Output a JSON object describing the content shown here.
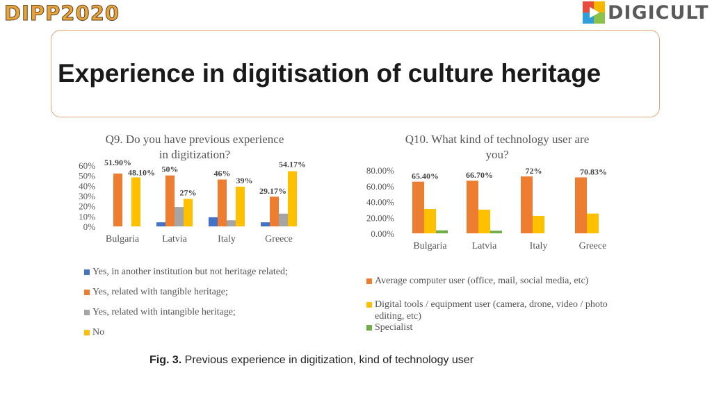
{
  "header": {
    "left_logo": "DIPP2020",
    "right_logo": "DIGICULT",
    "title": "Experience in digitisation of culture heritage"
  },
  "colors": {
    "blue": "#4472c4",
    "orange": "#ed7d31",
    "gray": "#a5a5a5",
    "yellow": "#ffc000",
    "green": "#70ad47"
  },
  "chart_data": [
    {
      "type": "bar",
      "title": "Q9. Do you have previous experience in digitization?",
      "title_lines": [
        "Q9. Do you have previous experience",
        "in digitization?"
      ],
      "categories": [
        "Bulgaria",
        "Latvia",
        "Italy",
        "Greece"
      ],
      "series": [
        {
          "name": "Yes, in another institution but not heritage related;",
          "values": [
            0,
            4,
            9,
            4
          ]
        },
        {
          "name": "Yes, related with tangible heritage;",
          "values": [
            51.9,
            50,
            46,
            29.17
          ]
        },
        {
          "name": "Yes, related with intangible heritage;",
          "values": [
            0,
            19,
            6,
            12.5
          ]
        },
        {
          "name": "No",
          "values": [
            48.1,
            27,
            39,
            54.17
          ]
        }
      ],
      "data_labels": [
        {
          "category": "Bulgaria",
          "series": 1,
          "text": "51.90%"
        },
        {
          "category": "Bulgaria",
          "series": 3,
          "text": "48.10%"
        },
        {
          "category": "Latvia",
          "series": 1,
          "text": "50%"
        },
        {
          "category": "Latvia",
          "series": 3,
          "text": "27%"
        },
        {
          "category": "Italy",
          "series": 1,
          "text": "46%"
        },
        {
          "category": "Italy",
          "series": 3,
          "text": "39%"
        },
        {
          "category": "Greece",
          "series": 1,
          "text": "29.17%"
        },
        {
          "category": "Greece",
          "series": 3,
          "text": "54.17%"
        }
      ],
      "yticks": [
        "0%",
        "10%",
        "20%",
        "30%",
        "40%",
        "50%",
        "60%"
      ],
      "ylim": [
        0,
        60
      ],
      "xlabel": "",
      "ylabel": "",
      "legend_position": "bottom"
    },
    {
      "type": "bar",
      "title": "Q10. What kind of technology user are you?",
      "title_lines": [
        "Q10. What kind of technology user are",
        "you?"
      ],
      "categories": [
        "Bulgaria",
        "Latvia",
        "Italy",
        "Greece"
      ],
      "series": [
        {
          "name": "Average computer user (office, mail, social media, etc)",
          "values": [
            65.4,
            66.7,
            72,
            70.83
          ]
        },
        {
          "name": "Digital tools / equipment user (camera, drone, video / photo editing, etc)",
          "values": [
            30.8,
            30,
            22,
            25
          ]
        },
        {
          "name": "Specialist",
          "values": [
            3.8,
            3.3,
            0,
            0
          ]
        }
      ],
      "data_labels": [
        {
          "category": "Bulgaria",
          "series": 0,
          "text": "65.40%"
        },
        {
          "category": "Latvia",
          "series": 0,
          "text": "66.70%"
        },
        {
          "category": "Italy",
          "series": 0,
          "text": "72%"
        },
        {
          "category": "Greece",
          "series": 0,
          "text": "70.83%"
        }
      ],
      "yticks": [
        "0.00%",
        "20.00%",
        "40.00%",
        "60.00%",
        "80.00%"
      ],
      "ylim": [
        0,
        80
      ],
      "xlabel": "",
      "ylabel": "",
      "legend_position": "bottom"
    }
  ],
  "legend1": [
    "Yes, in another institution but not heritage related;",
    "Yes, related with tangible heritage;",
    "Yes, related with intangible heritage;",
    "No"
  ],
  "legend2": [
    "Average computer user (office, mail, social media, etc)",
    "Digital tools / equipment user (camera, drone, video / photo",
    "editing, etc)",
    "Specialist"
  ],
  "caption": {
    "label": "Fig. 3.",
    "text": " Previous experience in digitization, kind of technology user"
  }
}
